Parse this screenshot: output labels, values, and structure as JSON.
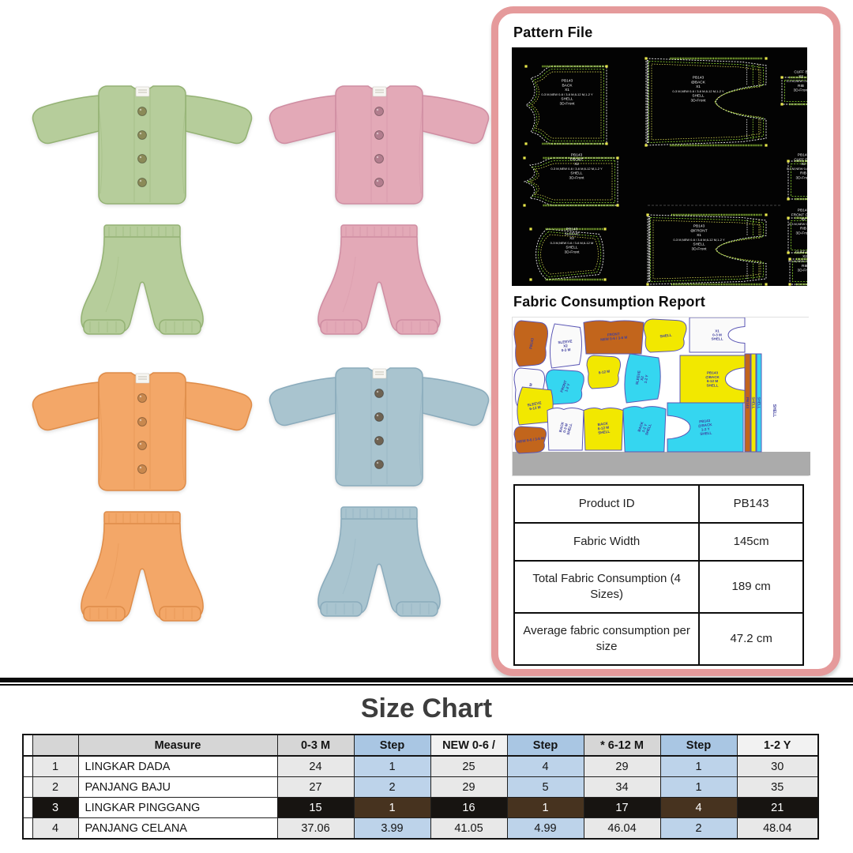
{
  "products": [
    {
      "name": "Green baby set",
      "fill": "#b6cd9b",
      "line": "#94b274",
      "button": "#8b8a58"
    },
    {
      "name": "Pink baby set",
      "fill": "#e3a9b7",
      "line": "#cf8da2",
      "button": "#b27e8e"
    },
    {
      "name": "Orange baby set",
      "fill": "#f3a768",
      "line": "#de8c49",
      "button": "#c8884e"
    },
    {
      "name": "Blue baby set",
      "fill": "#a9c4cf",
      "line": "#8aabbc",
      "button": "#6f6353"
    }
  ],
  "panel": {
    "pattern_title": "Pattern File",
    "fabric_title": "Fabric Consumption Report",
    "accent_color": "#e59a9b",
    "info_rows": [
      {
        "label": "Product ID",
        "value": "PB143"
      },
      {
        "label": "Fabric Width",
        "value": "145cm"
      },
      {
        "label": "Total Fabric Consumption (4 Sizes)",
        "value": "189 cm"
      },
      {
        "label": "Average fabric consumption per size",
        "value": "47.2 cm"
      }
    ]
  },
  "pattern": {
    "pieces": [
      {
        "id": "back",
        "lines": [
          "PB143",
          "BACK",
          "X1",
          "0-3 M,NEW 0-6 / 3-6 M,6-12 M,1-2 Y",
          "SHELL",
          "3D-Front"
        ]
      },
      {
        "id": "pants_back",
        "lines": [
          "PB143",
          "@BACK",
          "X1",
          "0-3 M,NEW 0-6 / 3-6 M,6-12 M,1-2 Y",
          "SHELL",
          "3D-Front"
        ]
      },
      {
        "id": "cuff_b",
        "lines": [
          "CUFF B",
          "X2",
          "0-3 M,NEW 0-6 / 3-6",
          "RIB",
          "3D-Front"
        ]
      },
      {
        "id": "front",
        "lines": [
          "PB143",
          "FRONT",
          "X2",
          "0-3 M,NEW 0-6 / 3-6 M,6-12 M,1-2 Y",
          "SHELL",
          "3D-Front"
        ]
      },
      {
        "id": "cuff_frt",
        "lines": [
          "PB143",
          "CUFF FRT",
          "X2",
          "0-3 M,NEW 0-6 / 3-6 M,",
          "RIB",
          "3D-Front"
        ]
      },
      {
        "id": "pants_front",
        "lines": [
          "PB143",
          "@FRONT",
          "X1",
          "0-3 M,NEW 0-6 / 3-6 M,6-12 M,1-2 Y",
          "SHELL",
          "3D-Front"
        ]
      },
      {
        "id": "sleeve",
        "lines": [
          "PB143",
          "SLEEVE",
          "X2",
          "0-3 M,NEW 0-6 / 3-6 M,6-12 M",
          "SHELL",
          "3D-Front"
        ]
      },
      {
        "id": "front_cuff",
        "lines": [
          "PB143",
          "FRONT CUFF",
          "X2",
          "0-3 M,NEW 0-6 / 3-6",
          "RIB",
          "3D-Front"
        ]
      },
      {
        "id": "cuff_btm",
        "lines": [
          "CUFF BTM",
          "X2",
          "0-3 M,NEW 0-6 / 3-6 M,",
          "RIB",
          "3D-Front"
        ]
      }
    ]
  },
  "marker": {
    "labels": {
      "product": "PB143",
      "sleeve": "SLEEVE",
      "shell": "SHELL",
      "back": "BACK",
      "at_back": "@BACK",
      "front": "FRONT",
      "size_03": "0-3 M",
      "size_612": "6-12 M",
      "size_12y": "1-2 Y",
      "x1": "X1",
      "x2": "X2",
      "new06": "NEW 0-6 / 3-6 M"
    },
    "colors": {
      "orange": "#c2651c",
      "yellow": "#f2e800",
      "cyan": "#35d6f0",
      "white": "#fafafa",
      "outline": "#5b57b5",
      "text": "#3f3f9f",
      "floor": "#ababab"
    }
  },
  "size_chart": {
    "title": "Size Chart",
    "columns": [
      "",
      "",
      "Measure",
      "0-3 M",
      "Step",
      "NEW 0-6 /",
      "Step",
      "* 6-12 M",
      "Step",
      "1-2 Y"
    ],
    "rows": [
      {
        "num": "1",
        "measure": "LINGKAR DADA",
        "values": [
          "24",
          "1",
          "25",
          "4",
          "29",
          "1",
          "30"
        ],
        "highlight": false
      },
      {
        "num": "2",
        "measure": "PANJANG BAJU",
        "values": [
          "27",
          "2",
          "29",
          "5",
          "34",
          "1",
          "35"
        ],
        "highlight": false
      },
      {
        "num": "3",
        "measure": "LINGKAR PINGGANG",
        "values": [
          "15",
          "1",
          "16",
          "1",
          "17",
          "4",
          "21"
        ],
        "highlight": true
      },
      {
        "num": "4",
        "measure": "PANJANG CELANA",
        "values": [
          "37.06",
          "3.99",
          "41.05",
          "4.99",
          "46.04",
          "2",
          "48.04"
        ],
        "highlight": false
      }
    ],
    "style": {
      "head_gray": "#d6d6d6",
      "head_white": "#f2f2f2",
      "head_blue": "#a9c6e3",
      "cell_gray": "#e8e8e8",
      "cell_blue": "#bdd3ea",
      "cell_white": "#ffffff",
      "hl_black": "#171411",
      "hl_brown": "#47331f"
    }
  }
}
